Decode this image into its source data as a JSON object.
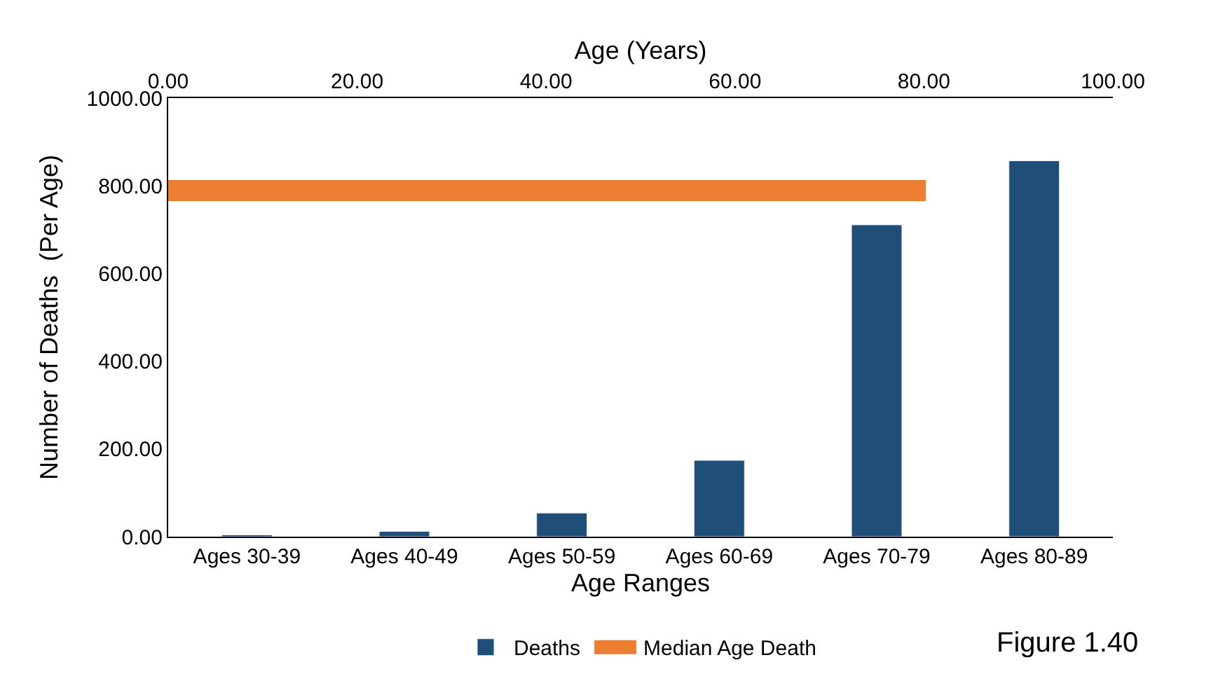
{
  "chart_data": {
    "type": "bar",
    "xlabel": "Age Ranges",
    "ylabel": "Number of Deaths  (Per Age)",
    "x2label": "Age (Years)",
    "categories": [
      "Ages 30-39",
      "Ages 40-49",
      "Ages 50-59",
      "Ages 60-69",
      "Ages 70-79",
      "Ages 80-89"
    ],
    "series": [
      {
        "name": "Deaths",
        "color": "#1f4e79",
        "values": [
          4,
          12,
          54,
          174,
          711,
          857
        ]
      },
      {
        "name": "Median Age Death",
        "color": "#ed7d31",
        "type": "line",
        "axis": "x2",
        "x": [
          0,
          80.2
        ],
        "values": [
          789,
          789
        ]
      }
    ],
    "ylim": [
      0,
      1000
    ],
    "yticks": [
      {
        "value": 0,
        "label": "0.00"
      },
      {
        "value": 200,
        "label": "200.00"
      },
      {
        "value": 400,
        "label": "400.00"
      },
      {
        "value": 600,
        "label": "600.00"
      },
      {
        "value": 800,
        "label": "800.00"
      },
      {
        "value": 1000,
        "label": "1000.00"
      }
    ],
    "x2lim": [
      0,
      100
    ],
    "x2ticks": [
      {
        "value": 0,
        "label": "0.00"
      },
      {
        "value": 20,
        "label": "20.00"
      },
      {
        "value": 40,
        "label": "40.00"
      },
      {
        "value": 60,
        "label": "60.00"
      },
      {
        "value": 80,
        "label": "80.00"
      },
      {
        "value": 100,
        "label": "100.00"
      }
    ],
    "legend": "bottom",
    "marker": "none",
    "annotations": [
      "Figure 1.40"
    ]
  }
}
